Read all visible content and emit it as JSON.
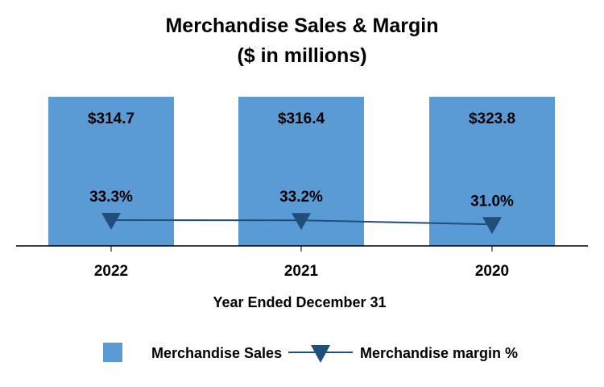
{
  "chart_data": {
    "type": "bar",
    "title": "Merchandise Sales & Margin",
    "subtitle": "($ in millions)",
    "xlabel": "Year Ended December 31",
    "ylabel": "",
    "categories": [
      "2022",
      "2021",
      "2020"
    ],
    "series": [
      {
        "name": "Merchandise Sales",
        "type": "bar",
        "values": [
          314.7,
          316.4,
          323.8
        ],
        "labels": [
          "$314.7",
          "$316.4",
          "$323.8"
        ],
        "color": "#5B9BD5"
      },
      {
        "name": "Merchandise margin %",
        "type": "line",
        "marker": "triangle-down",
        "values": [
          33.3,
          33.2,
          31.0
        ],
        "labels": [
          "33.3%",
          "33.2%",
          "31.0%"
        ],
        "color": "#1F4E79"
      }
    ],
    "grid": false,
    "legend": "bottom"
  }
}
